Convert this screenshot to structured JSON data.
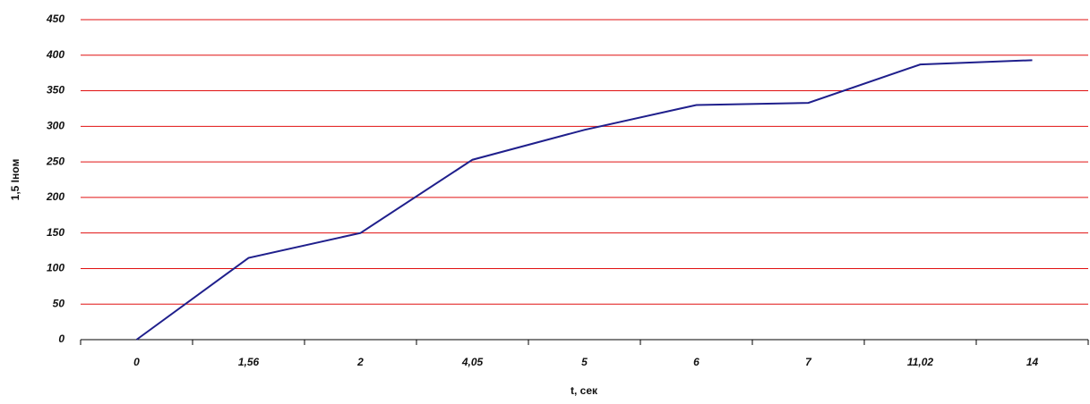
{
  "chart_data": {
    "type": "line",
    "x_label": "t, сек",
    "y_label": "1,5 Iном",
    "categories": [
      "0",
      "1,56",
      "2",
      "4,05",
      "5",
      "6",
      "7",
      "11,02",
      "14"
    ],
    "series": [
      {
        "name": "1,5 Iном",
        "color": "#1f1f8c",
        "values": [
          0,
          115,
          150,
          253,
          295,
          330,
          333,
          387,
          393
        ]
      }
    ],
    "ylim": [
      0,
      450
    ],
    "yticks": [
      0,
      50,
      100,
      150,
      200,
      250,
      300,
      350,
      400,
      450
    ],
    "grid": true,
    "grid_color": "#e01010"
  }
}
